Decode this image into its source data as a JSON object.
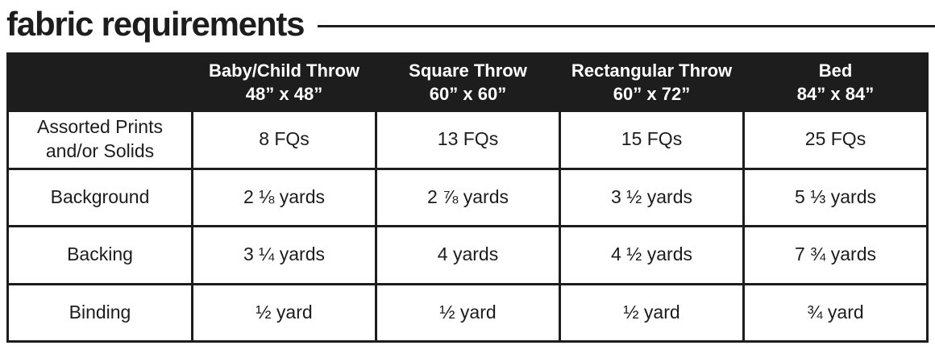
{
  "header": {
    "title": "fabric requirements"
  },
  "table": {
    "columns": [
      {
        "name": "",
        "size": ""
      },
      {
        "name": "Baby/Child Throw",
        "size": "48” x 48”"
      },
      {
        "name": "Square Throw",
        "size": "60” x 60”"
      },
      {
        "name": "Rectangular Throw",
        "size": "60” x 72”"
      },
      {
        "name": "Bed",
        "size": "84” x 84”"
      }
    ],
    "rows": [
      {
        "label": "Assorted Prints\nand/or Solids",
        "values": [
          "8 FQs",
          "13 FQs",
          "15 FQs",
          "25 FQs"
        ]
      },
      {
        "label": "Background",
        "values": [
          "2 ⅛ yards",
          "2 ⅞ yards",
          "3 ½ yards",
          "5 ⅓ yards"
        ]
      },
      {
        "label": "Backing",
        "values": [
          "3 ¼ yards",
          "4 yards",
          "4 ½ yards",
          "7 ¾ yards"
        ]
      },
      {
        "label": "Binding",
        "values": [
          "½ yard",
          "½ yard",
          "½ yard",
          "¾ yard"
        ]
      }
    ]
  },
  "colors": {
    "ink": "#1d1d1d",
    "header_background": "#1d1d1d",
    "header_text": "#ffffff",
    "page_background": "#ffffff"
  }
}
